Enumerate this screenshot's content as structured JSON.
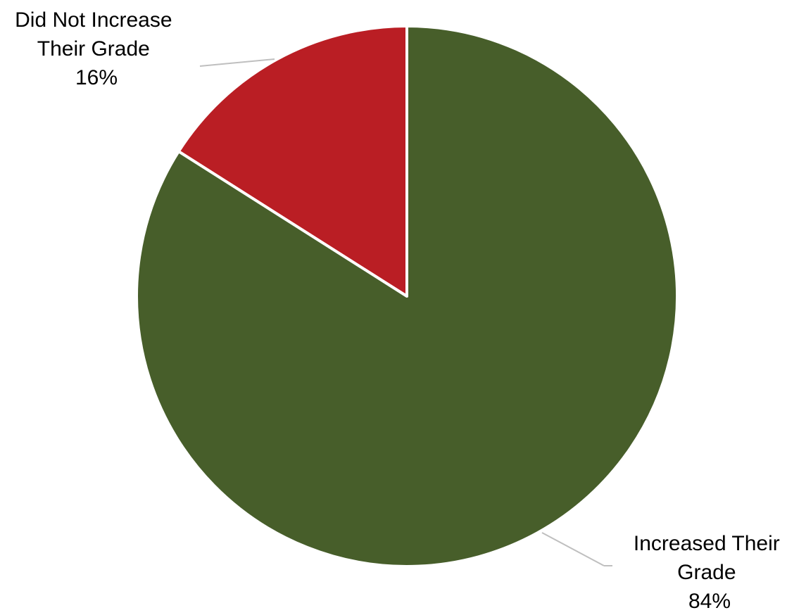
{
  "chart_data": {
    "type": "pie",
    "title": "",
    "slices": [
      {
        "label_lines": [
          "Did Not Increase",
          "Their Grade"
        ],
        "value": 16,
        "percent_label": "16%",
        "color": "#BA1E24"
      },
      {
        "label_lines": [
          "Increased Their",
          "Grade"
        ],
        "value": 84,
        "percent_label": "84%",
        "color": "#475E2A"
      }
    ],
    "legend": "none",
    "start_angle_deg": 0,
    "direction": "counterclockwise"
  }
}
